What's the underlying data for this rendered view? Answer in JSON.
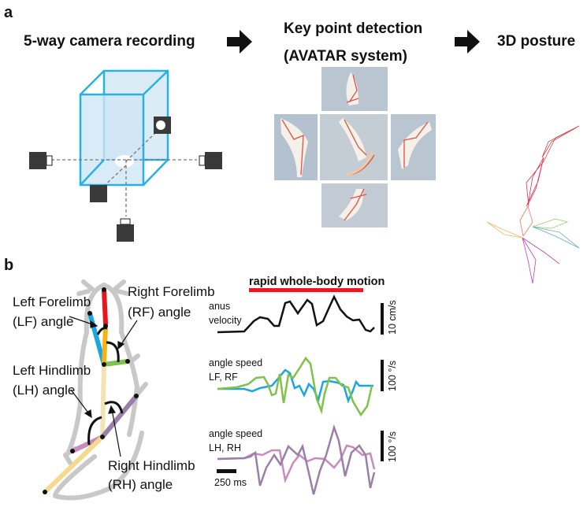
{
  "panel_a": {
    "label": "a",
    "step1": "5-way camera recording",
    "step2_line1": "Key point detection",
    "step2_line2": "(AVATAR system)",
    "step3": "3D posture",
    "box_color": "#29b0e6"
  },
  "panel_b": {
    "label": "b",
    "annotations": {
      "lf_line1": "Left Forelimb",
      "lf_line2": "(LF) angle",
      "rf_line1": "Right Forelimb",
      "rf_line2": "(RF) angle",
      "lh_line1": "Left Hindlimb",
      "lh_line2": "(LH) angle",
      "rh_line1": "Right Hindlimb",
      "rh_line2": "(RH) angle"
    },
    "segment_colors": {
      "head": "#e8161b",
      "lf": "#1aa7e0",
      "neck": "#f5b316",
      "rf": "#7fc34a",
      "spine": "#f2e2b4",
      "lh": "#c98bbd",
      "rh": "#9a7fa8",
      "tail": "#f7d98c"
    },
    "traces": {
      "motion_label": "rapid whole-body motion",
      "motion_bar_color": "#f0171b",
      "velocity_label_1": "anus",
      "velocity_label_2": "velocity",
      "velocity_scale": "10 cm/s",
      "fore_label_1": "angle speed",
      "fore_label_2": "LF, RF",
      "fore_scale": "100 °/s",
      "hind_label_1": "angle speed",
      "hind_label_2": "LH, RH",
      "hind_scale": "100 °/s",
      "time_scale": "250 ms"
    }
  }
}
